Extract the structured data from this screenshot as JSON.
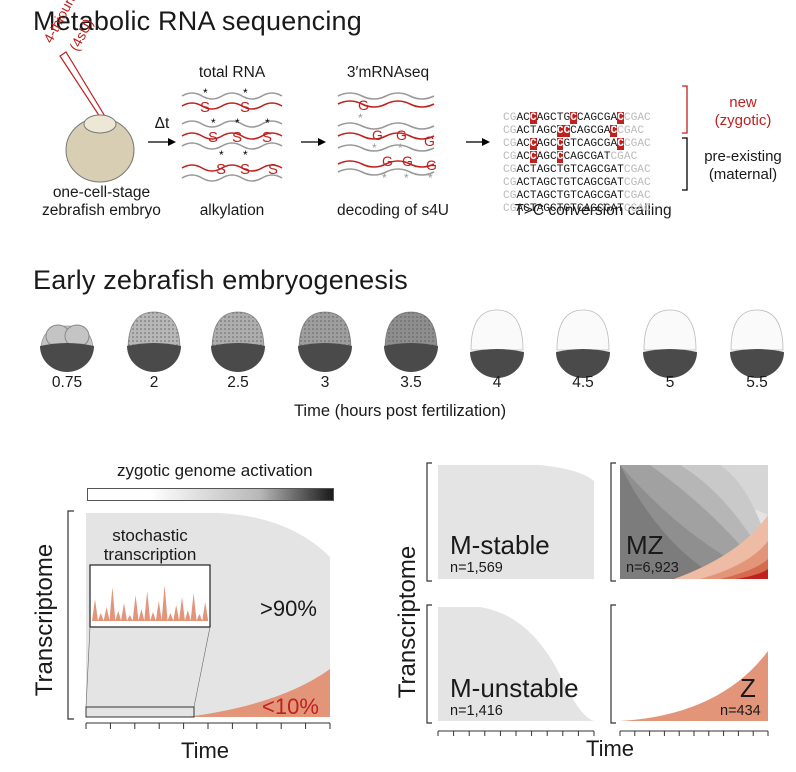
{
  "section1": {
    "title": "Metabolic RNA sequencing",
    "label_4su_line1": "4-thiouridine",
    "label_4su_line2": "(4sU)",
    "dt": "Δt",
    "embryo_caption_line1": "one-cell-stage",
    "embryo_caption_line2": "zebrafish embryo",
    "total_rna": "total RNA",
    "alkylation": "alkylation",
    "mrnaseq": "3′mRNAseq",
    "decoding": "decoding of s4U",
    "tc_calling": "T>C conversion calling",
    "new_line1": "new",
    "new_line2": "(zygotic)",
    "pre_line1": "pre-existing",
    "pre_line2": "(maternal)",
    "seq_rows_new": [
      {
        "pre": "CGAC",
        "a": "C",
        "b": "AGCTG",
        "c": "C",
        "d": "CAGCGA",
        "e": "C",
        "post": "CGAC"
      },
      {
        "pre": "CGACTAGC",
        "a": "C",
        "b": "",
        "c": "C",
        "d": "CAGCGA",
        "e": "C",
        "post": "CGAC"
      },
      {
        "pre": "CGAC",
        "a": "C",
        "b": "AGC",
        "c": "C",
        "d": "GTCAGCGA",
        "e": "C",
        "post": "CGAC"
      },
      {
        "pre": "CGAC",
        "a": "C",
        "b": "AGC",
        "c": "C",
        "d": "CAGCGAT",
        "e": "",
        "post": "CGAC"
      }
    ],
    "seq_rows_old": [
      "CGACTAGCTGTCAGCGATCGAC",
      "CGACTAGCTGTCAGCGATCGAC",
      "CGACTAGCTGTCAGCGATCGAC",
      "CGACTAGCTGTCAGCGATCGAC"
    ]
  },
  "section2": {
    "title": "Early zebrafish embryogenesis",
    "timepoints": [
      "0.75",
      "2",
      "2.5",
      "3",
      "3.5",
      "4",
      "4.5",
      "5",
      "5.5"
    ],
    "xlabel": "Time (hours post fertilization)"
  },
  "section3": {
    "zga_label": "zygotic genome activation",
    "stochastic_line1": "stochastic",
    "stochastic_line2": "transcription",
    "pct_high": ">90%",
    "pct_low": "<10%",
    "ylabel": "Transcriptome",
    "xlabel": "Time"
  },
  "section4": {
    "ylabel": "Transcriptome",
    "xlabel": "Time",
    "panels": [
      {
        "name": "M-stable",
        "n": "n=1,569"
      },
      {
        "name": "MZ",
        "n": "n=6,923"
      },
      {
        "name": "M-unstable",
        "n": "n=1,416"
      },
      {
        "name": "Z",
        "n": "n=434"
      }
    ]
  },
  "colors": {
    "accent_red": "#c0201e",
    "light_gray": "#e4e4e4",
    "dark_gray": "#5a5a5a",
    "salmon": "#e09a7c"
  }
}
